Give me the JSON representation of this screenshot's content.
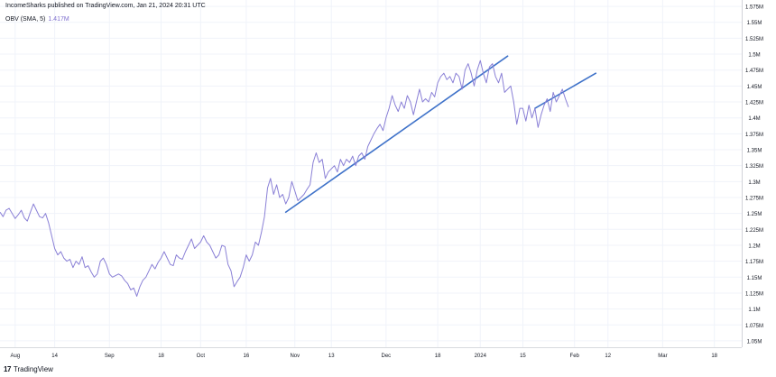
{
  "header": {
    "publisher_line": "IncomeSharks published on TradingView.com, Jan 21, 2024 20:31 UTC"
  },
  "indicator": {
    "name": "OBV (SMA, 5)",
    "value": "1.417M"
  },
  "brand": {
    "logo": "17",
    "name": "TradingView"
  },
  "colors": {
    "series": "#8a80d6",
    "trendline": "#3f72c9",
    "axis_text": "#131722",
    "grid": "#f0f3fa"
  },
  "chart_data": {
    "type": "line",
    "ylim": [
      1.04,
      1.585
    ],
    "y_ticks": [
      1.05,
      1.075,
      1.1,
      1.125,
      1.15,
      1.175,
      1.2,
      1.225,
      1.25,
      1.275,
      1.3,
      1.325,
      1.35,
      1.375,
      1.4,
      1.425,
      1.45,
      1.475,
      1.5,
      1.525,
      1.55,
      1.575
    ],
    "y_tick_labels": [
      "1.05M",
      "1.075M",
      "1.1M",
      "1.125M",
      "1.15M",
      "1.175M",
      "1.2M",
      "1.225M",
      "1.25M",
      "1.275M",
      "1.3M",
      "1.325M",
      "1.35M",
      "1.375M",
      "1.4M",
      "1.425M",
      "1.45M",
      "1.475M",
      "1.5M",
      "1.525M",
      "1.55M",
      "1.575M"
    ],
    "x_range": [
      "2023-07-27",
      "2024-03-27"
    ],
    "x_ticks": [
      {
        "label": "Aug",
        "date": "2023-08-01"
      },
      {
        "label": "14",
        "date": "2023-08-14"
      },
      {
        "label": "Sep",
        "date": "2023-09-01"
      },
      {
        "label": "18",
        "date": "2023-09-18"
      },
      {
        "label": "Oct",
        "date": "2023-10-01"
      },
      {
        "label": "16",
        "date": "2023-10-16"
      },
      {
        "label": "Nov",
        "date": "2023-11-01"
      },
      {
        "label": "13",
        "date": "2023-11-13"
      },
      {
        "label": "Dec",
        "date": "2023-12-01"
      },
      {
        "label": "18",
        "date": "2023-12-18"
      },
      {
        "label": "2024",
        "date": "2024-01-01"
      },
      {
        "label": "15",
        "date": "2024-01-15"
      },
      {
        "label": "Feb",
        "date": "2024-02-01"
      },
      {
        "label": "12",
        "date": "2024-02-12"
      },
      {
        "label": "Mar",
        "date": "2024-03-01"
      },
      {
        "label": "18",
        "date": "2024-03-18"
      }
    ],
    "series": [
      {
        "points": [
          [
            "2023-07-27",
            1.252
          ],
          [
            "2023-07-28",
            1.245
          ],
          [
            "2023-07-29",
            1.255
          ],
          [
            "2023-07-30",
            1.258
          ],
          [
            "2023-07-31",
            1.25
          ],
          [
            "2023-08-01",
            1.242
          ],
          [
            "2023-08-02",
            1.248
          ],
          [
            "2023-08-03",
            1.255
          ],
          [
            "2023-08-04",
            1.243
          ],
          [
            "2023-08-05",
            1.238
          ],
          [
            "2023-08-06",
            1.252
          ],
          [
            "2023-08-07",
            1.265
          ],
          [
            "2023-08-08",
            1.255
          ],
          [
            "2023-08-09",
            1.245
          ],
          [
            "2023-08-10",
            1.243
          ],
          [
            "2023-08-11",
            1.25
          ],
          [
            "2023-08-12",
            1.235
          ],
          [
            "2023-08-14",
            1.195
          ],
          [
            "2023-08-15",
            1.185
          ],
          [
            "2023-08-16",
            1.19
          ],
          [
            "2023-08-17",
            1.18
          ],
          [
            "2023-08-18",
            1.175
          ],
          [
            "2023-08-19",
            1.178
          ],
          [
            "2023-08-20",
            1.165
          ],
          [
            "2023-08-21",
            1.175
          ],
          [
            "2023-08-22",
            1.17
          ],
          [
            "2023-08-23",
            1.182
          ],
          [
            "2023-08-24",
            1.165
          ],
          [
            "2023-08-25",
            1.168
          ],
          [
            "2023-08-26",
            1.158
          ],
          [
            "2023-08-27",
            1.15
          ],
          [
            "2023-08-28",
            1.155
          ],
          [
            "2023-08-29",
            1.175
          ],
          [
            "2023-08-30",
            1.18
          ],
          [
            "2023-08-31",
            1.17
          ],
          [
            "2023-09-01",
            1.155
          ],
          [
            "2023-09-02",
            1.15
          ],
          [
            "2023-09-04",
            1.155
          ],
          [
            "2023-09-05",
            1.152
          ],
          [
            "2023-09-06",
            1.145
          ],
          [
            "2023-09-07",
            1.14
          ],
          [
            "2023-09-08",
            1.13
          ],
          [
            "2023-09-09",
            1.133
          ],
          [
            "2023-09-10",
            1.12
          ],
          [
            "2023-09-11",
            1.135
          ],
          [
            "2023-09-12",
            1.145
          ],
          [
            "2023-09-13",
            1.15
          ],
          [
            "2023-09-14",
            1.16
          ],
          [
            "2023-09-15",
            1.17
          ],
          [
            "2023-09-16",
            1.163
          ],
          [
            "2023-09-17",
            1.173
          ],
          [
            "2023-09-18",
            1.18
          ],
          [
            "2023-09-19",
            1.19
          ],
          [
            "2023-09-20",
            1.18
          ],
          [
            "2023-09-21",
            1.17
          ],
          [
            "2023-09-22",
            1.168
          ],
          [
            "2023-09-23",
            1.185
          ],
          [
            "2023-09-24",
            1.18
          ],
          [
            "2023-09-25",
            1.178
          ],
          [
            "2023-09-26",
            1.19
          ],
          [
            "2023-09-27",
            1.2
          ],
          [
            "2023-09-28",
            1.21
          ],
          [
            "2023-09-29",
            1.195
          ],
          [
            "2023-10-01",
            1.205
          ],
          [
            "2023-10-02",
            1.215
          ],
          [
            "2023-10-03",
            1.205
          ],
          [
            "2023-10-04",
            1.2
          ],
          [
            "2023-10-05",
            1.19
          ],
          [
            "2023-10-06",
            1.18
          ],
          [
            "2023-10-07",
            1.185
          ],
          [
            "2023-10-08",
            1.2
          ],
          [
            "2023-10-09",
            1.198
          ],
          [
            "2023-10-10",
            1.17
          ],
          [
            "2023-10-11",
            1.16
          ],
          [
            "2023-10-12",
            1.135
          ],
          [
            "2023-10-13",
            1.143
          ],
          [
            "2023-10-14",
            1.15
          ],
          [
            "2023-10-15",
            1.165
          ],
          [
            "2023-10-16",
            1.185
          ],
          [
            "2023-10-17",
            1.175
          ],
          [
            "2023-10-18",
            1.185
          ],
          [
            "2023-10-19",
            1.205
          ],
          [
            "2023-10-20",
            1.2
          ],
          [
            "2023-10-21",
            1.22
          ],
          [
            "2023-10-22",
            1.245
          ],
          [
            "2023-10-23",
            1.29
          ],
          [
            "2023-10-24",
            1.305
          ],
          [
            "2023-10-25",
            1.28
          ],
          [
            "2023-10-26",
            1.295
          ],
          [
            "2023-10-27",
            1.275
          ],
          [
            "2023-10-28",
            1.28
          ],
          [
            "2023-10-29",
            1.265
          ],
          [
            "2023-10-30",
            1.275
          ],
          [
            "2023-10-31",
            1.3
          ],
          [
            "2023-11-01",
            1.285
          ],
          [
            "2023-11-02",
            1.27
          ],
          [
            "2023-11-03",
            1.275
          ],
          [
            "2023-11-04",
            1.28
          ],
          [
            "2023-11-05",
            1.288
          ],
          [
            "2023-11-06",
            1.295
          ],
          [
            "2023-11-07",
            1.33
          ],
          [
            "2023-11-08",
            1.345
          ],
          [
            "2023-11-09",
            1.33
          ],
          [
            "2023-11-10",
            1.335
          ],
          [
            "2023-11-11",
            1.305
          ],
          [
            "2023-11-12",
            1.315
          ],
          [
            "2023-11-13",
            1.32
          ],
          [
            "2023-11-14",
            1.325
          ],
          [
            "2023-11-15",
            1.315
          ],
          [
            "2023-11-16",
            1.335
          ],
          [
            "2023-11-17",
            1.325
          ],
          [
            "2023-11-18",
            1.335
          ],
          [
            "2023-11-19",
            1.33
          ],
          [
            "2023-11-20",
            1.34
          ],
          [
            "2023-11-21",
            1.325
          ],
          [
            "2023-11-22",
            1.34
          ],
          [
            "2023-11-23",
            1.345
          ],
          [
            "2023-11-24",
            1.335
          ],
          [
            "2023-11-25",
            1.355
          ],
          [
            "2023-11-26",
            1.365
          ],
          [
            "2023-11-27",
            1.375
          ],
          [
            "2023-11-28",
            1.383
          ],
          [
            "2023-11-29",
            1.39
          ],
          [
            "2023-11-30",
            1.38
          ],
          [
            "2023-12-01",
            1.4
          ],
          [
            "2023-12-02",
            1.415
          ],
          [
            "2023-12-03",
            1.435
          ],
          [
            "2023-12-04",
            1.42
          ],
          [
            "2023-12-05",
            1.41
          ],
          [
            "2023-12-06",
            1.425
          ],
          [
            "2023-12-07",
            1.415
          ],
          [
            "2023-12-08",
            1.435
          ],
          [
            "2023-12-09",
            1.425
          ],
          [
            "2023-12-10",
            1.405
          ],
          [
            "2023-12-11",
            1.425
          ],
          [
            "2023-12-12",
            1.445
          ],
          [
            "2023-12-13",
            1.425
          ],
          [
            "2023-12-14",
            1.43
          ],
          [
            "2023-12-15",
            1.425
          ],
          [
            "2023-12-16",
            1.44
          ],
          [
            "2023-12-17",
            1.433
          ],
          [
            "2023-12-18",
            1.455
          ],
          [
            "2023-12-19",
            1.465
          ],
          [
            "2023-12-20",
            1.47
          ],
          [
            "2023-12-21",
            1.46
          ],
          [
            "2023-12-22",
            1.465
          ],
          [
            "2023-12-23",
            1.455
          ],
          [
            "2023-12-24",
            1.47
          ],
          [
            "2023-12-25",
            1.465
          ],
          [
            "2023-12-26",
            1.445
          ],
          [
            "2023-12-27",
            1.475
          ],
          [
            "2023-12-28",
            1.485
          ],
          [
            "2023-12-29",
            1.47
          ],
          [
            "2023-12-30",
            1.45
          ],
          [
            "2023-12-31",
            1.475
          ],
          [
            "2024-01-01",
            1.49
          ],
          [
            "2024-01-02",
            1.47
          ],
          [
            "2024-01-03",
            1.455
          ],
          [
            "2024-01-04",
            1.48
          ],
          [
            "2024-01-05",
            1.485
          ],
          [
            "2024-01-06",
            1.465
          ],
          [
            "2024-01-07",
            1.455
          ],
          [
            "2024-01-08",
            1.47
          ],
          [
            "2024-01-09",
            1.44
          ],
          [
            "2024-01-10",
            1.445
          ],
          [
            "2024-01-11",
            1.45
          ],
          [
            "2024-01-12",
            1.425
          ],
          [
            "2024-01-13",
            1.39
          ],
          [
            "2024-01-14",
            1.415
          ],
          [
            "2024-01-15",
            1.415
          ],
          [
            "2024-01-16",
            1.395
          ],
          [
            "2024-01-17",
            1.42
          ],
          [
            "2024-01-18",
            1.4
          ],
          [
            "2024-01-19",
            1.415
          ],
          [
            "2024-01-20",
            1.385
          ],
          [
            "2024-01-21",
            1.405
          ],
          [
            "2024-01-22",
            1.42
          ],
          [
            "2024-01-23",
            1.43
          ],
          [
            "2024-01-24",
            1.41
          ],
          [
            "2024-01-25",
            1.44
          ],
          [
            "2024-01-26",
            1.425
          ],
          [
            "2024-01-27",
            1.435
          ],
          [
            "2024-01-28",
            1.445
          ],
          [
            "2024-01-29",
            1.43
          ],
          [
            "2024-01-30",
            1.417
          ]
        ]
      }
    ],
    "trendlines": [
      {
        "from": [
          "2023-10-29",
          1.252
        ],
        "to": [
          "2024-01-10",
          1.497
        ]
      },
      {
        "from": [
          "2024-01-19",
          1.415
        ],
        "to": [
          "2024-02-08",
          1.47
        ]
      }
    ]
  }
}
